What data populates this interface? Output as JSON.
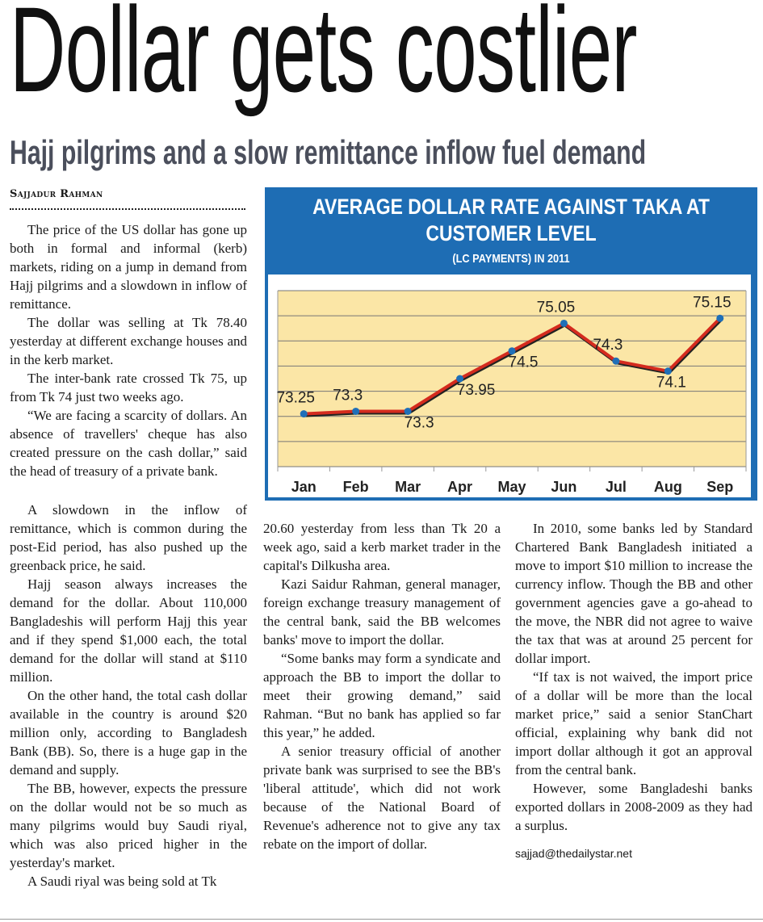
{
  "headline": "Dollar gets costlier",
  "subheadline": "Hajj pilgrims and a slow remittance inflow fuel demand",
  "byline": "Sajjadur Rahman",
  "columns": {
    "col1_top": [
      "The price of the US dollar has gone up both in formal and informal (kerb) markets, riding on a jump in demand from Hajj pilgrims and a slowdown in inflow of remittance.",
      "The dollar was selling at Tk 78.40 yesterday at different exchange houses and in the kerb market.",
      "The inter-bank rate crossed Tk 75, up from Tk 74 just two weeks ago.",
      "“We are facing a scarcity of dollars. An absence of travellers' cheque has also created pressure on the cash dollar,” said the head of treasury of a private bank."
    ],
    "col1_bottom": [
      "A slowdown in the inflow of remittance, which is common during the post-Eid period, has also pushed up the greenback price, he said.",
      "Hajj season always increases the demand for the dollar. About 110,000 Bangladeshis will perform Hajj this year and if they spend $1,000 each, the total demand for the dollar will stand at $110 million.",
      "On the other hand, the total cash dollar available in the country is around $20 million only, according to Bangladesh Bank (BB). So, there is a huge gap in the demand and supply.",
      "The BB, however, expects the pressure on the dollar would not be so much as many pilgrims would buy Saudi riyal, which was also priced higher in the yesterday's market.",
      "A Saudi riyal was being sold at Tk"
    ],
    "col2": [
      "20.60 yesterday from less than Tk 20 a week ago, said a kerb market trader in the capital's Dilkusha area.",
      "Kazi Saidur Rahman, general manager, foreign exchange treasury management of the central bank, said the BB welcomes banks' move to import the dollar.",
      "“Some banks may form a syndicate and approach the BB to import the dollar to meet their growing demand,” said Rahman. “But no bank has applied so far this year,” he added.",
      "A senior treasury official of another private bank was surprised to see the BB's 'liberal attitude', which did not work because of the National Board of Revenue's adherence not to give any tax rebate on the import of dollar."
    ],
    "col3": [
      "In 2010, some banks led by Standard Chartered Bank Bangladesh initiated a move to import $10 million to increase the currency inflow. Though the BB and other government agencies gave a go-ahead to the move, the NBR did not agree to waive the tax that was at around 25 percent for dollar import.",
      "“If tax is not waived, the import price of a dollar will be more than the local market price,” said a senior StanChart official, explaining why bank did not import dollar although it got an approval from the central bank.",
      "However, some Bangladeshi banks exported dollars in 2008-2009 as they had a surplus."
    ],
    "email": "sajjad@thedailystar.net"
  },
  "chart_data": {
    "type": "line",
    "title": "AVERAGE DOLLAR RATE AGAINST TAKA AT CUSTOMER LEVEL",
    "subtitle": "(LC PAYMENTS) IN 2011",
    "categories": [
      "Jan",
      "Feb",
      "Mar",
      "Apr",
      "May",
      "Jun",
      "Jul",
      "Aug",
      "Sep"
    ],
    "values": [
      73.25,
      73.3,
      73.3,
      73.95,
      74.5,
      75.05,
      74.3,
      74.1,
      75.15
    ],
    "data_labels": [
      "73.25",
      "73.3",
      "73.3",
      "73.95",
      "74.5",
      "75.05",
      "74.3",
      "74.1",
      "75.15"
    ],
    "xlabel": "",
    "ylabel": "",
    "ylim": [
      72.2,
      75.7
    ],
    "grid": true,
    "colors": {
      "frame": "#1e6db4",
      "plot_bg": "#fbe6a6",
      "line": "#d42b1e",
      "marker": "#1f6fb8"
    }
  }
}
